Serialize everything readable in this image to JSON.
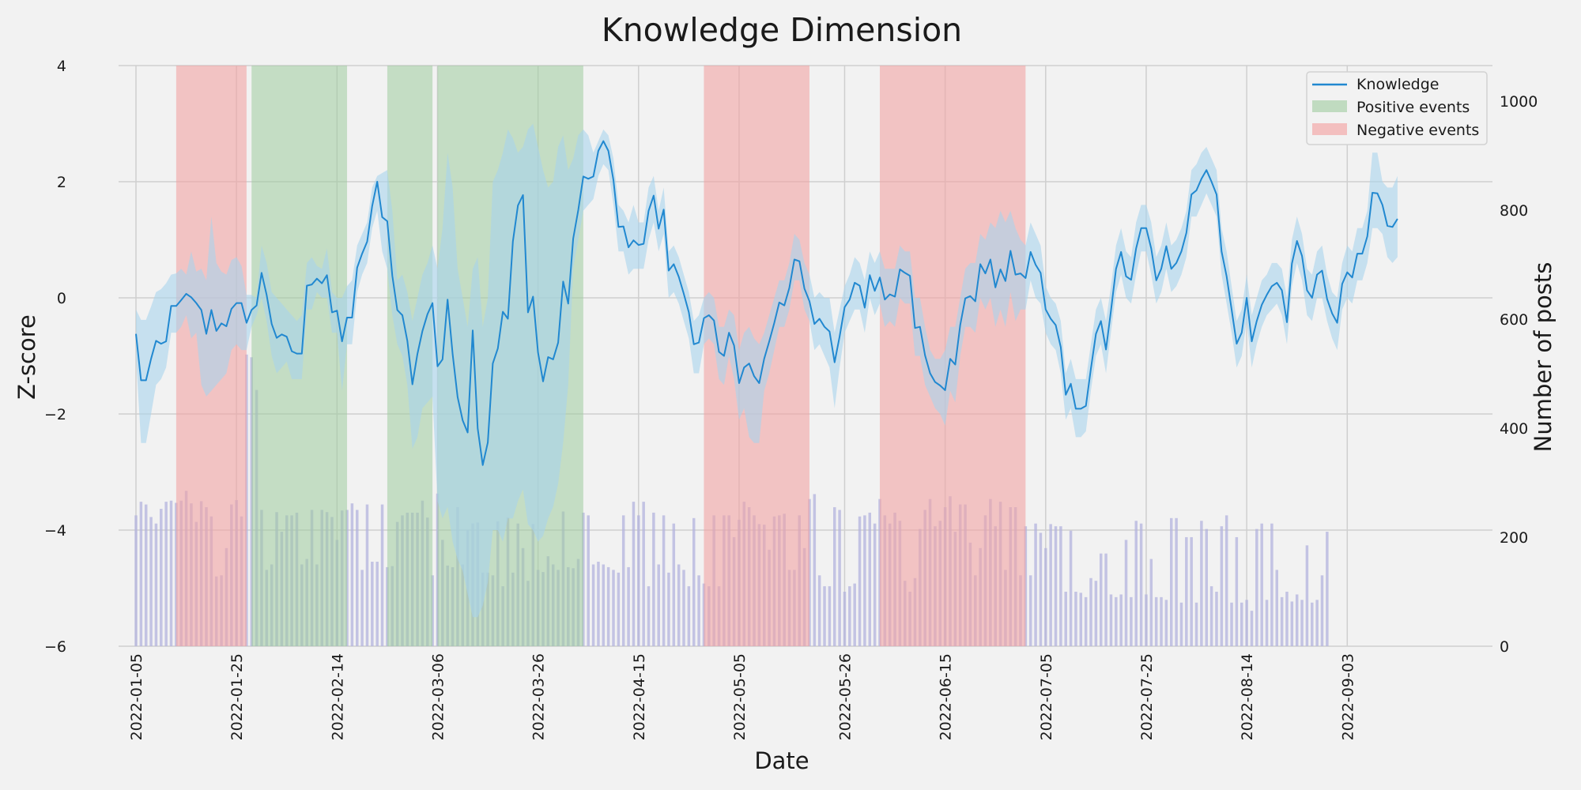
{
  "chart_data": {
    "type": "line",
    "title": "Knowledge Dimension",
    "xlabel": "Date",
    "ylabel": "Z-score",
    "y2label": "Number of posts",
    "ylim": [
      -6,
      4
    ],
    "y2lim": [
      0,
      1065
    ],
    "xlim": [
      "2022-01-05",
      "2022-09-19"
    ],
    "x_ticks": [
      "2022-01-05",
      "2022-01-25",
      "2022-02-14",
      "2022-03-06",
      "2022-03-26",
      "2022-04-15",
      "2022-05-05",
      "2022-05-26",
      "2022-06-15",
      "2022-07-05",
      "2022-07-25",
      "2022-08-14",
      "2022-09-03"
    ],
    "y_ticks": [
      -6,
      -4,
      -2,
      0,
      2,
      4
    ],
    "y2_ticks": [
      0,
      200,
      400,
      600,
      800,
      1000
    ],
    "grid": true,
    "legend_position": "top-right",
    "legend": {
      "line_label": "Knowledge",
      "positive_label": "Positive events",
      "negative_label": "Negative events"
    },
    "colors": {
      "line": "#2188d0",
      "band": "#a9d3ec",
      "bars": "#b3b3dd",
      "positive": "#9fcc9f",
      "negative": "#f2a3a3",
      "background": "#f2f2f2",
      "grid": "#cfcfcf"
    },
    "positive_events": [
      [
        "2022-01-28",
        "2022-02-16"
      ],
      [
        "2022-02-24",
        "2022-03-05"
      ],
      [
        "2022-03-06",
        "2022-04-04"
      ]
    ],
    "negative_events": [
      [
        "2022-01-13",
        "2022-01-27"
      ],
      [
        "2022-04-28",
        "2022-05-19"
      ],
      [
        "2022-06-02",
        "2022-07-01"
      ]
    ],
    "series": [
      {
        "name": "Knowledge",
        "start_date": "2022-01-05",
        "values": [
          -0.62,
          -1.42,
          -1.42,
          -1.05,
          -0.74,
          -0.79,
          -0.75,
          -0.14,
          -0.14,
          -0.04,
          0.07,
          0.01,
          -0.09,
          -0.21,
          -0.62,
          -0.21,
          -0.57,
          -0.44,
          -0.49,
          -0.19,
          -0.09,
          -0.09,
          -0.43,
          -0.21,
          -0.13,
          0.43,
          0.05,
          -0.45,
          -0.69,
          -0.63,
          -0.67,
          -0.92,
          -0.96,
          -0.96,
          0.21,
          0.23,
          0.33,
          0.25,
          0.39,
          -0.25,
          -0.22,
          -0.75,
          -0.34,
          -0.34,
          0.52,
          0.76,
          0.97,
          1.58,
          2.0,
          1.39,
          1.32,
          0.38,
          -0.21,
          -0.3,
          -0.74,
          -1.49,
          -0.97,
          -0.57,
          -0.28,
          -0.09,
          -1.18,
          -1.06,
          -0.03,
          -0.97,
          -1.71,
          -2.11,
          -2.32,
          -0.56,
          -2.25,
          -2.88,
          -2.49,
          -1.13,
          -0.87,
          -0.24,
          -0.36,
          0.97,
          1.59,
          1.77,
          -0.25,
          0.02,
          -0.94,
          -1.44,
          -1.02,
          -1.06,
          -0.77,
          0.28,
          -0.1,
          1.02,
          1.51,
          2.09,
          2.05,
          2.09,
          2.53,
          2.7,
          2.53,
          2.03,
          1.22,
          1.23,
          0.87,
          0.99,
          0.91,
          0.93,
          1.5,
          1.76,
          1.19,
          1.52,
          0.47,
          0.58,
          0.36,
          0.07,
          -0.25,
          -0.8,
          -0.77,
          -0.35,
          -0.3,
          -0.39,
          -0.93,
          -1.0,
          -0.6,
          -0.82,
          -1.47,
          -1.2,
          -1.13,
          -1.35,
          -1.47,
          -1.05,
          -0.75,
          -0.43,
          -0.08,
          -0.13,
          0.17,
          0.66,
          0.63,
          0.16,
          -0.06,
          -0.45,
          -0.36,
          -0.5,
          -0.58,
          -1.11,
          -0.67,
          -0.16,
          -0.03,
          0.26,
          0.21,
          -0.17,
          0.39,
          0.12,
          0.35,
          -0.03,
          0.06,
          0.02,
          0.49,
          0.43,
          0.38,
          -0.52,
          -0.5,
          -0.99,
          -1.3,
          -1.45,
          -1.51,
          -1.59,
          -1.05,
          -1.15,
          -0.47,
          -0.01,
          0.03,
          -0.06,
          0.58,
          0.42,
          0.66,
          0.18,
          0.49,
          0.29,
          0.81,
          0.4,
          0.42,
          0.34,
          0.79,
          0.57,
          0.43,
          -0.2,
          -0.36,
          -0.47,
          -0.85,
          -1.67,
          -1.48,
          -1.91,
          -1.91,
          -1.86,
          -1.22,
          -0.62,
          -0.4,
          -0.89,
          -0.22,
          0.5,
          0.79,
          0.37,
          0.31,
          0.85,
          1.2,
          1.2,
          0.85,
          0.3,
          0.5,
          0.89,
          0.5,
          0.6,
          0.8,
          1.12,
          1.78,
          1.85,
          2.05,
          2.2,
          2.0,
          1.78,
          0.8,
          0.37,
          -0.2,
          -0.79,
          -0.6,
          0.0,
          -0.75,
          -0.4,
          -0.12,
          0.05,
          0.2,
          0.26,
          0.13,
          -0.42,
          0.59,
          0.98,
          0.72,
          0.13,
          0.0,
          0.4,
          0.47,
          -0.02,
          -0.27,
          -0.43,
          0.24,
          0.44,
          0.35,
          0.76,
          0.76,
          1.06,
          1.81,
          1.8,
          1.6,
          1.24,
          1.22,
          1.36
        ]
      },
      {
        "name": "Number of posts",
        "start_date": "2022-01-05",
        "values": [
          240,
          265,
          260,
          237,
          225,
          252,
          265,
          267,
          263,
          267,
          285,
          262,
          228,
          266,
          255,
          238,
          128,
          130,
          180,
          260,
          268,
          238,
          535,
          530,
          470,
          250,
          140,
          150,
          246,
          210,
          240,
          240,
          245,
          150,
          160,
          250,
          150,
          250,
          246,
          237,
          195,
          249,
          250,
          262,
          250,
          140,
          260,
          155,
          155,
          260,
          145,
          147,
          228,
          240,
          245,
          245,
          245,
          267,
          236,
          130,
          280,
          195,
          148,
          145,
          255,
          150,
          213,
          225,
          227,
          135,
          135,
          130,
          229,
          110,
          236,
          135,
          225,
          180,
          120,
          224,
          140,
          136,
          165,
          150,
          140,
          247,
          145,
          143,
          160,
          245,
          240,
          150,
          155,
          150,
          145,
          140,
          135,
          240,
          145,
          265,
          240,
          265,
          110,
          245,
          150,
          240,
          135,
          225,
          150,
          140,
          110,
          235,
          130,
          115,
          110,
          240,
          110,
          240,
          240,
          200,
          232,
          265,
          255,
          240,
          224,
          223,
          177,
          238,
          240,
          243,
          140,
          140,
          240,
          180,
          270,
          279,
          130,
          110,
          110,
          255,
          250,
          100,
          110,
          115,
          238,
          240,
          245,
          225,
          270,
          240,
          225,
          245,
          230,
          120,
          100,
          125,
          215,
          250,
          270,
          220,
          230,
          255,
          275,
          210,
          260,
          260,
          190,
          130,
          180,
          240,
          270,
          220,
          265,
          140,
          255,
          255,
          130,
          220,
          130,
          225,
          208,
          180,
          224,
          220,
          220,
          100,
          212,
          100,
          98,
          90,
          125,
          120,
          170,
          170,
          95,
          90,
          95,
          195,
          90,
          230,
          225,
          95,
          160,
          90,
          90,
          85,
          235,
          235,
          80,
          200,
          200,
          80,
          230,
          215,
          110,
          100,
          220,
          240,
          80,
          200,
          80,
          85,
          65,
          215,
          225,
          85,
          225,
          140,
          90,
          100,
          82,
          95,
          85,
          185,
          80,
          85,
          130,
          210
        ]
      },
      {
        "name": "Knowledge band upper",
        "start_date": "2022-01-05",
        "values": [
          -0.2,
          -0.38,
          -0.38,
          -0.15,
          0.1,
          0.15,
          0.25,
          0.4,
          0.42,
          0.5,
          0.4,
          0.8,
          0.45,
          0.5,
          0.3,
          1.4,
          0.6,
          0.45,
          0.4,
          0.65,
          0.7,
          0.55,
          0.05,
          0.05,
          0.0,
          0.9,
          0.6,
          0.1,
          0.0,
          -0.1,
          -0.2,
          -0.3,
          -0.4,
          -0.3,
          0.6,
          0.7,
          0.55,
          0.5,
          0.85,
          0.1,
          0.0,
          0.0,
          0.2,
          0.3,
          0.9,
          1.1,
          1.3,
          1.9,
          2.1,
          2.15,
          2.2,
          1.5,
          0.3,
          0.4,
          0.1,
          -0.4,
          0.0,
          0.4,
          0.6,
          0.9,
          0.5,
          1.2,
          2.5,
          1.9,
          0.5,
          0.0,
          -0.5,
          0.5,
          0.7,
          -0.5,
          0.0,
          2.0,
          2.2,
          2.5,
          2.9,
          2.75,
          2.5,
          2.6,
          2.9,
          3.0,
          2.6,
          2.2,
          1.9,
          2.0,
          2.6,
          2.8,
          2.2,
          2.4,
          2.8,
          2.9,
          2.8,
          2.5,
          2.7,
          2.9,
          2.8,
          2.4,
          1.6,
          1.5,
          1.3,
          1.6,
          1.3,
          1.3,
          1.9,
          2.1,
          1.5,
          1.9,
          0.8,
          0.9,
          0.7,
          0.4,
          0.1,
          -0.4,
          -0.3,
          0.0,
          0.1,
          0.0,
          -0.5,
          -0.5,
          -0.2,
          -0.3,
          -0.9,
          -0.6,
          -0.5,
          -0.7,
          -0.8,
          -0.6,
          -0.3,
          0.0,
          0.3,
          0.3,
          0.6,
          1.1,
          1.0,
          0.6,
          0.4,
          0.0,
          0.1,
          0.0,
          0.0,
          -0.6,
          -0.2,
          0.2,
          0.4,
          0.7,
          0.6,
          0.3,
          0.8,
          0.6,
          0.8,
          0.5,
          0.5,
          0.5,
          0.9,
          0.8,
          0.8,
          0.0,
          0.0,
          -0.5,
          -0.9,
          -1.05,
          -1.05,
          -0.9,
          -0.5,
          -0.5,
          0.0,
          0.5,
          0.6,
          0.6,
          1.1,
          1.0,
          1.3,
          1.2,
          1.5,
          1.3,
          1.5,
          1.2,
          1.0,
          0.9,
          1.3,
          1.1,
          0.9,
          0.2,
          0.0,
          -0.1,
          -0.4,
          -1.3,
          -1.05,
          -1.4,
          -1.4,
          -1.4,
          -0.8,
          -0.2,
          0.0,
          -0.4,
          0.2,
          0.9,
          1.2,
          0.8,
          0.7,
          1.3,
          1.6,
          1.6,
          1.3,
          0.7,
          0.9,
          1.3,
          0.9,
          1.0,
          1.2,
          1.5,
          2.2,
          2.3,
          2.5,
          2.6,
          2.4,
          2.2,
          1.2,
          0.8,
          0.2,
          -0.4,
          -0.2,
          0.4,
          -0.3,
          0.0,
          0.3,
          0.4,
          0.6,
          0.6,
          0.5,
          0.0,
          1.0,
          1.4,
          1.1,
          0.5,
          0.4,
          0.8,
          0.9,
          0.4,
          0.1,
          0.0,
          0.6,
          0.9,
          0.8,
          1.2,
          1.2,
          1.5,
          2.5,
          2.5,
          2.0,
          1.9,
          1.9,
          2.1
        ]
      },
      {
        "name": "Knowledge band lower",
        "start_date": "2022-01-05",
        "values": [
          -1.0,
          -2.5,
          -2.5,
          -2.0,
          -1.5,
          -1.4,
          -1.2,
          -0.6,
          -0.6,
          -0.5,
          -0.3,
          -0.7,
          -0.6,
          -1.5,
          -1.7,
          -1.6,
          -1.5,
          -1.4,
          -1.3,
          -0.9,
          -0.8,
          -0.9,
          -0.9,
          -0.5,
          -0.3,
          0.0,
          -0.4,
          -1.0,
          -1.3,
          -1.2,
          -1.1,
          -1.4,
          -1.4,
          -1.4,
          -0.2,
          -0.2,
          0.1,
          0.0,
          0.0,
          -0.6,
          -0.6,
          -1.6,
          -0.8,
          -0.8,
          0.1,
          0.4,
          0.6,
          1.2,
          1.5,
          0.8,
          0.5,
          -0.3,
          -0.8,
          -1.0,
          -1.5,
          -2.6,
          -2.4,
          -1.9,
          -1.8,
          -1.7,
          -3.5,
          -3.8,
          -3.6,
          -4.2,
          -4.5,
          -4.7,
          -5.1,
          -5.5,
          -5.5,
          -5.3,
          -4.9,
          -4.0,
          -4.0,
          -4.2,
          -3.8,
          -3.8,
          -3.5,
          -3.3,
          -3.9,
          -4.0,
          -4.2,
          -4.1,
          -3.8,
          -3.6,
          -3.2,
          -2.5,
          -1.5,
          0.5,
          1.0,
          1.5,
          1.6,
          1.7,
          2.1,
          2.3,
          2.2,
          1.6,
          0.8,
          0.8,
          0.4,
          0.5,
          0.5,
          0.5,
          1.0,
          1.3,
          0.8,
          1.1,
          0.0,
          0.1,
          -0.1,
          -0.4,
          -0.7,
          -1.3,
          -1.3,
          -0.8,
          -0.7,
          -0.8,
          -1.4,
          -1.5,
          -1.0,
          -1.4,
          -2.1,
          -1.9,
          -2.4,
          -2.5,
          -2.5,
          -1.6,
          -1.3,
          -0.9,
          -0.5,
          -0.5,
          -0.2,
          0.3,
          0.3,
          -0.2,
          -0.4,
          -0.9,
          -0.8,
          -1.0,
          -1.2,
          -1.9,
          -1.2,
          -0.6,
          -0.4,
          -0.2,
          -0.2,
          -0.6,
          0.0,
          -0.3,
          -0.1,
          -0.5,
          -0.4,
          -0.5,
          0.0,
          -0.1,
          -0.1,
          -1.0,
          -1.0,
          -1.5,
          -1.7,
          -1.9,
          -2.0,
          -2.2,
          -1.6,
          -1.8,
          -1.0,
          -0.5,
          -0.5,
          -0.6,
          0.0,
          -0.2,
          0.0,
          -0.5,
          -0.2,
          -0.5,
          0.1,
          -0.4,
          -0.2,
          -0.2,
          0.3,
          0.0,
          -0.1,
          -0.6,
          -0.8,
          -0.9,
          -1.3,
          -2.1,
          -1.9,
          -2.4,
          -2.4,
          -2.3,
          -1.6,
          -1.0,
          -0.8,
          -1.3,
          -0.6,
          0.1,
          0.4,
          0.0,
          -0.1,
          0.4,
          0.8,
          0.8,
          0.4,
          -0.1,
          0.1,
          0.5,
          0.1,
          0.2,
          0.4,
          0.7,
          1.4,
          1.4,
          1.6,
          1.8,
          1.6,
          1.4,
          0.4,
          -0.1,
          -0.6,
          -1.2,
          -1.0,
          -0.4,
          -1.2,
          -0.8,
          -0.5,
          -0.3,
          -0.2,
          -0.1,
          -0.3,
          -0.8,
          0.2,
          0.6,
          0.3,
          -0.3,
          -0.4,
          0.0,
          0.0,
          -0.4,
          -0.7,
          -0.9,
          -0.2,
          0.0,
          -0.1,
          0.3,
          0.3,
          0.6,
          1.2,
          1.2,
          1.1,
          0.7,
          0.6,
          0.7
        ]
      }
    ]
  }
}
